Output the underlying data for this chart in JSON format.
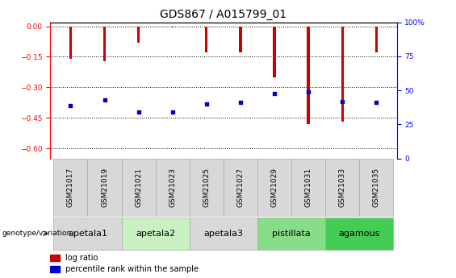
{
  "title": "GDS867 / A015799_01",
  "samples": [
    "GSM21017",
    "GSM21019",
    "GSM21021",
    "GSM21023",
    "GSM21025",
    "GSM21027",
    "GSM21029",
    "GSM21031",
    "GSM21033",
    "GSM21035"
  ],
  "log_ratios": [
    -0.16,
    -0.17,
    -0.08,
    -0.005,
    -0.13,
    -0.13,
    -0.25,
    -0.48,
    -0.47,
    -0.13
  ],
  "percentile_ranks_pct": [
    39,
    43,
    34,
    34,
    40,
    41,
    48,
    49,
    42,
    41
  ],
  "genotype_groups": [
    {
      "label": "apetala1",
      "samples": [
        0,
        1
      ],
      "color": "#d8d8d8"
    },
    {
      "label": "apetala2",
      "samples": [
        2,
        3
      ],
      "color": "#c8f0c0"
    },
    {
      "label": "apetala3",
      "samples": [
        4,
        5
      ],
      "color": "#d8d8d8"
    },
    {
      "label": "pistillata",
      "samples": [
        6,
        7
      ],
      "color": "#88dd88"
    },
    {
      "label": "agamous",
      "samples": [
        8,
        9
      ],
      "color": "#44cc55"
    }
  ],
  "ylim_left": [
    -0.65,
    0.02
  ],
  "ylim_right": [
    -0.65,
    0.02
  ],
  "yticks_left": [
    0.0,
    -0.15,
    -0.3,
    -0.45,
    -0.6
  ],
  "yticks_right": [
    0.0,
    25.0,
    50.0,
    75.0,
    100.0
  ],
  "bar_color": "#cc0000",
  "dot_color": "#0000cc",
  "title_fontsize": 10,
  "tick_fontsize": 6.5,
  "label_fontsize": 8,
  "legend_fontsize": 7,
  "bar_width": 0.08
}
